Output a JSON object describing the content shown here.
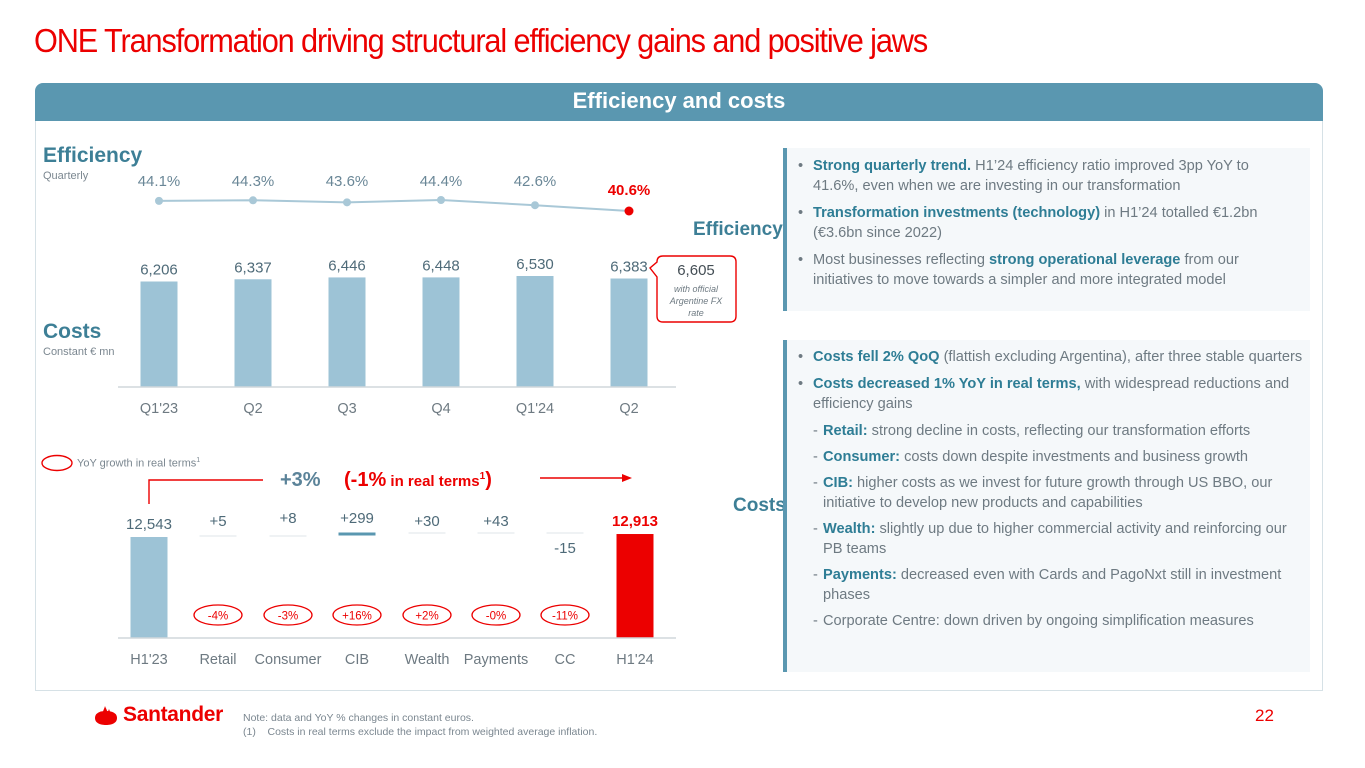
{
  "title": "ONE Transformation driving structural efficiency gains and positive jaws",
  "header": {
    "title": "Efficiency and costs"
  },
  "colors": {
    "brand_red": "#EC0000",
    "teal": "#5A97B0",
    "bar_blue": "#9DC3D6",
    "text_teal": "#3D7F96"
  },
  "left": {
    "efficiency_title": "Efficiency",
    "efficiency_subtitle": "Quarterly",
    "costs_title": "Costs",
    "costs_subtitle": "Constant € mn",
    "callout": {
      "value": "6,605",
      "note": "with official Argentine FX rate"
    },
    "legend_label": "YoY growth in real terms",
    "legend_sup": "1",
    "growth_total": "+3%",
    "growth_real_prefix": "(-1%",
    "growth_real_suffix": " in real terms",
    "growth_real_sup": "1",
    "growth_real_close": ")"
  },
  "chart_data": [
    {
      "type": "line",
      "title": "Efficiency (Quarterly)",
      "categories": [
        "Q1'23",
        "Q2",
        "Q3",
        "Q4",
        "Q1'24",
        "Q2"
      ],
      "values": [
        44.1,
        44.3,
        43.6,
        44.4,
        42.6,
        40.6
      ],
      "labels": [
        "44.1%",
        "44.3%",
        "43.6%",
        "44.4%",
        "42.6%",
        "40.6%"
      ],
      "highlight_index": 5,
      "unit": "%"
    },
    {
      "type": "bar",
      "title": "Costs (Constant € mn)",
      "categories": [
        "Q1'23",
        "Q2",
        "Q3",
        "Q4",
        "Q1'24",
        "Q2"
      ],
      "values": [
        6206,
        6337,
        6446,
        6448,
        6530,
        6383
      ],
      "labels": [
        "6,206",
        "6,337",
        "6,446",
        "6,448",
        "6,530",
        "6,383"
      ],
      "annotation": {
        "index": 5,
        "value": 6605,
        "label": "6,605",
        "note": "with official Argentine FX rate"
      }
    },
    {
      "type": "bar",
      "subtype": "waterfall",
      "title": "Costs H1'23 to H1'24 bridge",
      "categories": [
        "H1'23",
        "Retail",
        "Consumer",
        "CIB",
        "Wealth",
        "Payments",
        "CC",
        "H1'24"
      ],
      "values": [
        12543,
        5,
        8,
        299,
        30,
        43,
        -15,
        12913
      ],
      "labels": [
        "12,543",
        "+5",
        "+8",
        "+299",
        "+30",
        "+43",
        "-15",
        "12,913"
      ],
      "kinds": [
        "total",
        "delta",
        "delta",
        "delta",
        "delta",
        "delta",
        "delta",
        "total"
      ],
      "yoy_real_growth": [
        null,
        "-4%",
        "-3%",
        "+16%",
        "+2%",
        "-0%",
        "-11%",
        null
      ],
      "summary": {
        "nominal": "+3%",
        "real": "-1%"
      }
    }
  ],
  "right": {
    "efficiency_label": "Efficiency",
    "efficiency_bullets": [
      {
        "bold": "Strong quarterly trend.",
        "text": " H1’24 efficiency ratio improved 3pp YoY to 41.6%, even when we are investing in our transformation"
      },
      {
        "bold": "Transformation investments (technology)",
        "text": " in H1’24 totalled €1.2bn (€3.6bn since 2022)"
      },
      {
        "pre": "Most businesses reflecting ",
        "bold": "strong operational leverage",
        "text": " from our initiatives to move towards a simpler and more integrated model"
      }
    ],
    "costs_label": "Costs",
    "costs_bullets": [
      {
        "bold": "Costs fell 2% QoQ",
        "text": " (flattish excluding Argentina), after three stable quarters"
      },
      {
        "bold": "Costs decreased 1% YoY in real terms,",
        "text": " with widespread reductions and efficiency gains"
      }
    ],
    "costs_subitems": [
      {
        "bold": "Retail:",
        "text": " strong decline in costs, reflecting our transformation efforts"
      },
      {
        "bold": "Consumer:",
        "text": " costs down despite investments and business growth"
      },
      {
        "bold": "CIB:",
        "text": " higher costs as we invest for future growth through US BBO, our initiative to develop new products and capabilities"
      },
      {
        "bold": "Wealth:",
        "text": " slightly up due to higher commercial activity and reinforcing our PB teams"
      },
      {
        "bold": "Payments:",
        "text": " decreased even with Cards and PagoNxt still in investment phases"
      },
      {
        "bold": "",
        "text": "Corporate Centre: down driven by ongoing simplification measures"
      }
    ]
  },
  "footer": {
    "brand": "Santander",
    "note_line1": "Note: data and YoY % changes in constant euros.",
    "note_line2": "(1)    Costs in real terms exclude the impact from weighted average inflation.",
    "page_number": "22"
  }
}
